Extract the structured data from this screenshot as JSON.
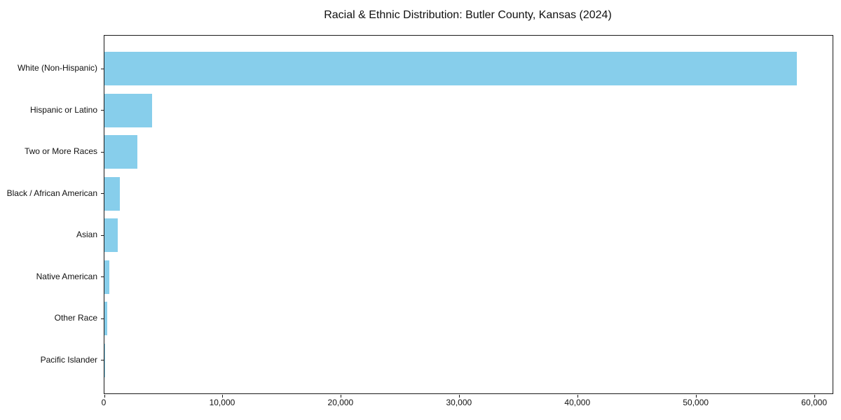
{
  "chart_data": {
    "type": "bar",
    "orientation": "horizontal",
    "title": "Racial & Ethnic Distribution: Butler County, Kansas (2024)",
    "xlabel": "",
    "ylabel": "",
    "categories": [
      "White (Non-Hispanic)",
      "Hispanic or Latino",
      "Two or More Races",
      "Black / African American",
      "Asian",
      "Native American",
      "Other Race",
      "Pacific Islander"
    ],
    "values": [
      58500,
      4050,
      2800,
      1290,
      1150,
      440,
      250,
      50
    ],
    "xlim": [
      0,
      61500
    ],
    "x_ticks": [
      0,
      10000,
      20000,
      30000,
      40000,
      50000,
      60000
    ],
    "x_tick_labels": [
      "0",
      "10,000",
      "20,000",
      "30,000",
      "40,000",
      "50,000",
      "60,000"
    ],
    "bar_color": "#87CEEB",
    "axis_color": "#1a1a1a",
    "background": "#FFFFFF",
    "grid": false,
    "legend": null
  }
}
